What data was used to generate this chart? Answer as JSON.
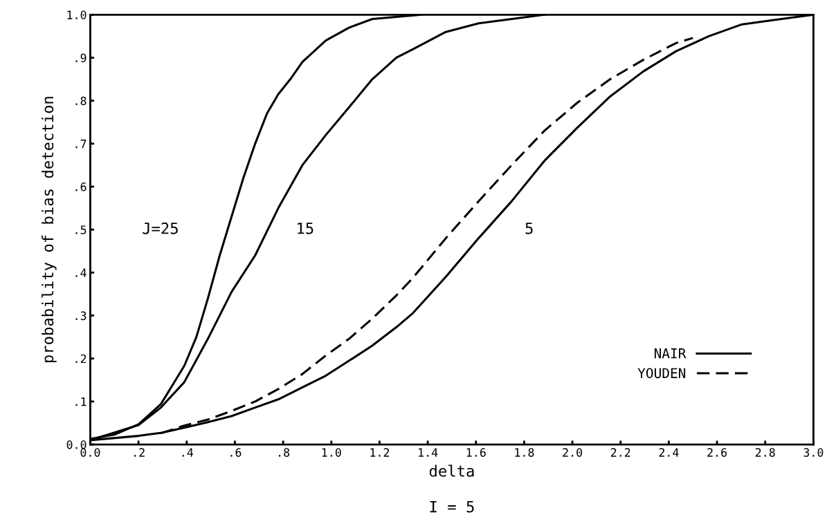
{
  "chart_data": {
    "type": "line",
    "xlabel": "delta",
    "ylabel": "probability of bias detection",
    "xlim": [
      0,
      3.0
    ],
    "ylim": [
      0,
      1.0
    ],
    "xticks": [
      {
        "value": 0,
        "label": "0.0"
      },
      {
        "value": 0.2,
        "label": ".2"
      },
      {
        "value": 0.4,
        "label": ".4"
      },
      {
        "value": 0.6,
        "label": ".6"
      },
      {
        "value": 0.8,
        "label": ".8"
      },
      {
        "value": 1.0,
        "label": "1.0"
      },
      {
        "value": 1.2,
        "label": "1.2"
      },
      {
        "value": 1.4,
        "label": "1.4"
      },
      {
        "value": 1.6,
        "label": "1.6"
      },
      {
        "value": 1.8,
        "label": "1.8"
      },
      {
        "value": 2.0,
        "label": "2.0"
      },
      {
        "value": 2.2,
        "label": "2.2"
      },
      {
        "value": 2.4,
        "label": "2.4"
      },
      {
        "value": 2.6,
        "label": "2.6"
      },
      {
        "value": 2.8,
        "label": "2.8"
      },
      {
        "value": 3.0,
        "label": "3.0"
      }
    ],
    "yticks": [
      {
        "value": 0,
        "label": "0.0"
      },
      {
        "value": 0.1,
        "label": ".1"
      },
      {
        "value": 0.2,
        "label": ".2"
      },
      {
        "value": 0.3,
        "label": ".3"
      },
      {
        "value": 0.4,
        "label": ".4"
      },
      {
        "value": 0.5,
        "label": ".5"
      },
      {
        "value": 0.6,
        "label": ".6"
      },
      {
        "value": 0.7,
        "label": ".7"
      },
      {
        "value": 0.8,
        "label": ".8"
      },
      {
        "value": 0.9,
        "label": ".9"
      },
      {
        "value": 1.0,
        "label": "1.0"
      }
    ],
    "grid": false,
    "legend": "bottom right",
    "marker": "none",
    "series": [
      {
        "name": "NAIR",
        "color": "#000000",
        "line_style": "solid",
        "x": [
          0,
          0.1,
          0.2,
          0.293,
          0.39,
          0.44,
          0.488,
          0.537,
          0.586,
          0.635,
          0.684,
          0.733,
          0.78,
          0.83,
          0.88,
          0.977,
          1.074,
          1.17,
          1.37
        ],
        "values": [
          0.013,
          0.023,
          0.047,
          0.094,
          0.183,
          0.25,
          0.34,
          0.44,
          0.53,
          0.62,
          0.7,
          0.77,
          0.815,
          0.85,
          0.89,
          0.94,
          0.97,
          0.99,
          1.0
        ]
      },
      {
        "color": "#000000",
        "line_style": "solid",
        "x": [
          0,
          0.2,
          0.293,
          0.39,
          0.488,
          0.586,
          0.684,
          0.78,
          0.88,
          0.977,
          1.074,
          1.17,
          1.27,
          1.339,
          1.475,
          1.611,
          1.748,
          1.884
        ],
        "values": [
          0.01,
          0.045,
          0.086,
          0.145,
          0.246,
          0.355,
          0.44,
          0.55,
          0.65,
          0.72,
          0.785,
          0.85,
          0.9,
          0.92,
          0.96,
          0.98,
          0.99,
          1.0
        ]
      },
      {
        "color": "#000000",
        "line_style": "solid",
        "x": [
          0,
          0.2,
          0.293,
          0.39,
          0.488,
          0.586,
          0.684,
          0.78,
          0.88,
          0.977,
          1.074,
          1.17,
          1.27,
          1.339,
          1.475,
          1.611,
          1.748,
          1.884,
          2.02,
          2.157,
          2.294,
          2.43,
          2.566,
          2.7,
          2.84,
          3.0
        ],
        "values": [
          0.01,
          0.02,
          0.027,
          0.039,
          0.052,
          0.066,
          0.086,
          0.105,
          0.133,
          0.16,
          0.195,
          0.23,
          0.273,
          0.306,
          0.39,
          0.48,
          0.566,
          0.66,
          0.737,
          0.81,
          0.868,
          0.915,
          0.95,
          0.977,
          0.988,
          1.0
        ]
      },
      {
        "name": "YOUDEN",
        "color": "#000000",
        "line_style": "dashed",
        "x": [
          0.293,
          0.39,
          0.488,
          0.586,
          0.684,
          0.78,
          0.88,
          0.977,
          1.074,
          1.17,
          1.27,
          1.339,
          1.475,
          1.611,
          1.748,
          1.884,
          2.02,
          2.157,
          2.294,
          2.43,
          2.5
        ],
        "values": [
          0.026,
          0.044,
          0.058,
          0.078,
          0.1,
          0.129,
          0.164,
          0.207,
          0.246,
          0.293,
          0.347,
          0.388,
          0.48,
          0.566,
          0.65,
          0.73,
          0.795,
          0.85,
          0.895,
          0.934,
          0.946
        ]
      }
    ],
    "annotations": [
      "J=25",
      "15",
      "5",
      "I = 5"
    ]
  }
}
